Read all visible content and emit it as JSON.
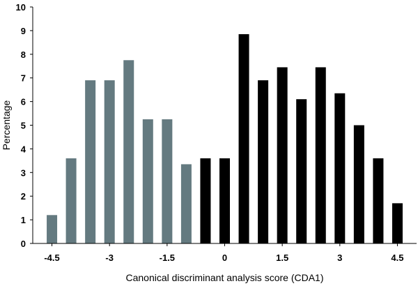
{
  "chart_data": {
    "type": "bar",
    "xlabel": "Canonical discriminant analysis score (CDA1)",
    "ylabel": "Percentage",
    "ylim": [
      0,
      10
    ],
    "xlim": [
      -5.0,
      5.0
    ],
    "yticks": [
      "0",
      "1",
      "2",
      "3",
      "4",
      "5",
      "6",
      "7",
      "8",
      "9",
      "10"
    ],
    "xticks": [
      {
        "value": -4.5,
        "label": "-4.5"
      },
      {
        "value": -3.0,
        "label": "-3"
      },
      {
        "value": -1.5,
        "label": "-1.5"
      },
      {
        "value": 0.0,
        "label": "0"
      },
      {
        "value": 1.5,
        "label": "1.5"
      },
      {
        "value": 3.0,
        "label": "3"
      },
      {
        "value": 4.5,
        "label": "4.5"
      }
    ],
    "grid": false,
    "series": [
      {
        "color": "#647a80",
        "x": [
          -4.5,
          -4.0,
          -3.5,
          -3.0,
          -2.5,
          -2.0,
          -1.5,
          -1.0
        ],
        "values": [
          1.2,
          3.6,
          6.9,
          6.9,
          7.75,
          5.25,
          5.25,
          3.35
        ]
      },
      {
        "color": "#000000",
        "x": [
          -0.5,
          0.0,
          0.5,
          1.0,
          1.5,
          2.0,
          2.5,
          3.0,
          3.5,
          4.0,
          4.5
        ],
        "values": [
          3.6,
          3.6,
          8.85,
          6.9,
          7.45,
          6.1,
          7.45,
          6.35,
          5.0,
          3.6,
          1.7
        ]
      }
    ]
  }
}
